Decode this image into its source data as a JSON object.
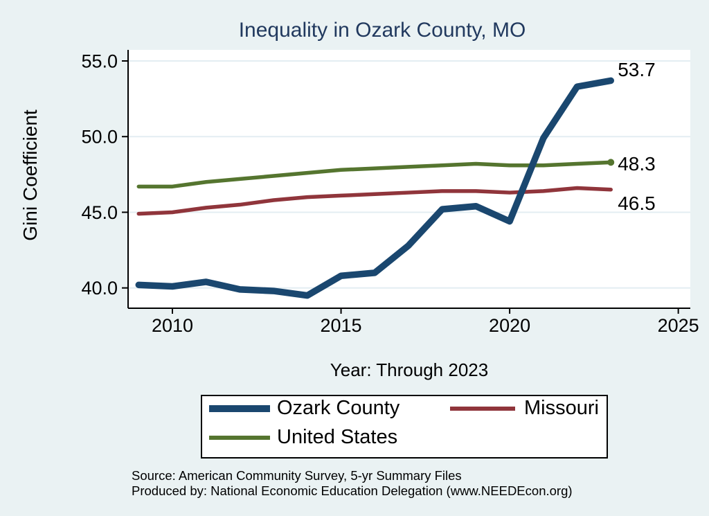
{
  "title": {
    "text": "Inequality in Ozark County, MO",
    "color": "#21395e"
  },
  "axes": {
    "y_title": "Gini Coefficient",
    "x_title": "Year: Through 2023"
  },
  "notes": [
    "Source: American Community Survey, 5-yr Summary Files",
    "Produced by: National Economic Education Delegation (www.NEEDEcon.org)"
  ],
  "colors": {
    "background": "#eaf2f3",
    "plot": "#ffffff",
    "grid": "#e3edf2",
    "axis": "#000000",
    "title": "#21395e"
  },
  "chart_data": {
    "type": "line",
    "title": "Inequality in Ozark County, MO",
    "xlabel": "Year: Through 2023",
    "ylabel": "Gini Coefficient",
    "x": [
      2009,
      2010,
      2011,
      2012,
      2013,
      2014,
      2015,
      2016,
      2017,
      2018,
      2019,
      2020,
      2021,
      2022,
      2023
    ],
    "x_ticks": [
      2010,
      2015,
      2020,
      2025
    ],
    "y_ticks": [
      55,
      50,
      45,
      40
    ],
    "xlim": [
      2008.7,
      2025.4
    ],
    "ylim": [
      38.6,
      55.8
    ],
    "grid": "horizontal",
    "legend_position": "bottom-box",
    "series": [
      {
        "name": "Ozark County",
        "color": "#1a476f",
        "end_label": "53.7",
        "values": [
          40.2,
          40.1,
          40.4,
          39.9,
          39.8,
          39.5,
          40.8,
          41.0,
          42.8,
          45.2,
          45.4,
          44.4,
          49.9,
          53.3,
          53.7
        ]
      },
      {
        "name": "Missouri",
        "color": "#90353b",
        "end_label": "46.5",
        "values": [
          44.9,
          45.0,
          45.3,
          45.5,
          45.8,
          46.0,
          46.1,
          46.2,
          46.3,
          46.4,
          46.4,
          46.3,
          46.4,
          46.6,
          46.5
        ]
      },
      {
        "name": "United States",
        "color": "#55752f",
        "end_label": "48.3",
        "values": [
          46.7,
          46.7,
          47.0,
          47.2,
          47.4,
          47.6,
          47.8,
          47.9,
          48.0,
          48.1,
          48.2,
          48.1,
          48.1,
          48.2,
          48.3
        ]
      }
    ]
  }
}
